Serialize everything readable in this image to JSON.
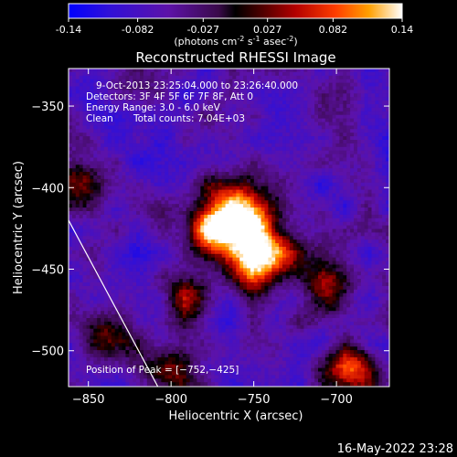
{
  "colorbar": {
    "tick_labels": [
      "-0.14",
      "-0.082",
      "-0.027",
      "0.027",
      "0.082",
      "0.14"
    ],
    "tick_values": [
      -0.14,
      -0.082,
      -0.027,
      0.027,
      0.082,
      0.14
    ],
    "range": [
      -0.14,
      0.14
    ],
    "units_label": "(photons cm",
    "units_sup1": "-2",
    "units_mid1": " s",
    "units_sup2": "-1",
    "units_mid2": " asec",
    "units_sup3": "-2",
    "units_end": ")"
  },
  "footer": {
    "timestamp": "16-May-2022 23:28"
  },
  "chart_data": {
    "type": "heatmap",
    "title": "Reconstructed RHESSI Image",
    "xlabel": "Heliocentric X (arcsec)",
    "ylabel": "Heliocentric Y (arcsec)",
    "xlim": [
      -862,
      -668
    ],
    "ylim": [
      -522,
      -327
    ],
    "x_ticks": [
      -850,
      -800,
      -750,
      -700
    ],
    "y_ticks": [
      -350,
      -400,
      -450,
      -500
    ],
    "x_tick_labels": [
      "−850",
      "−800",
      "−750",
      "−700"
    ],
    "y_tick_labels": [
      "−350",
      "−400",
      "−450",
      "−500"
    ],
    "annotations": [
      "9-Oct-2013 23:25:04.000 to 23:26:40.000",
      "Detectors: 3F 4F 5F 6F 7F 8F, Att 0",
      "Energy Range: 3.0 - 6.0 keV",
      "Clean",
      "Total counts: 7.04E+03"
    ],
    "peak_label": "Position of Peak = [−752,−425]",
    "peak": [
      -752,
      -425
    ],
    "limb_line": [
      [
        -862,
        -420
      ],
      [
        -808,
        -522
      ]
    ],
    "sources": [
      {
        "x": -775,
        "y": -424,
        "value": 0.125
      },
      {
        "x": -752,
        "y": -425,
        "value": 0.14
      },
      {
        "x": -752,
        "y": -450,
        "value": 0.09
      },
      {
        "x": -762,
        "y": -405,
        "value": 0.06
      },
      {
        "x": -735,
        "y": -440,
        "value": 0.06
      },
      {
        "x": -705,
        "y": -465,
        "value": 0.05
      },
      {
        "x": -690,
        "y": -510,
        "value": 0.06
      },
      {
        "x": -855,
        "y": -395,
        "value": 0.035
      },
      {
        "x": -835,
        "y": -490,
        "value": 0.03
      },
      {
        "x": -790,
        "y": -465,
        "value": 0.025
      },
      {
        "x": -800,
        "y": -510,
        "value": 0.02
      }
    ],
    "background_value": -0.07
  }
}
